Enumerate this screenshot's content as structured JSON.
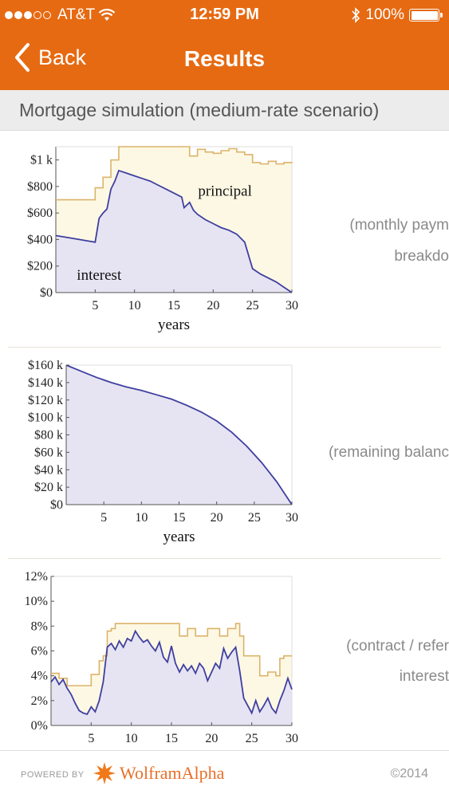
{
  "status": {
    "carrier": "AT&T",
    "time": "12:59 PM",
    "battery": "100%",
    "signal_bars_filled": 3,
    "signal_bars_total": 5
  },
  "nav": {
    "back_label": "Back",
    "title": "Results"
  },
  "pod": {
    "title": "Mortgage simulation (medium-rate scenario)"
  },
  "captions": {
    "c1_line1": "(monthly paym",
    "c1_line2": "breakdo",
    "c2_line1": "(remaining balanc",
    "c3_line1": "(contract / refer",
    "c3_line2": "interest"
  },
  "footer": {
    "powered_by": "POWERED BY",
    "brand": "WolframAlpha",
    "copyright": "©2014"
  },
  "colors": {
    "orange": "#e66a12",
    "fill_blue": "#e6e4f2",
    "line_blue": "#3f3fa0",
    "fill_beige": "#fdf8e4",
    "line_tan": "#dcb36a"
  },
  "chart_data": [
    {
      "type": "area",
      "xlabel": "years",
      "xlim": [
        0,
        30
      ],
      "ylim": [
        0,
        1100
      ],
      "xticks": [
        5,
        10,
        15,
        20,
        25,
        30
      ],
      "yticks": [
        0,
        200,
        400,
        600,
        800,
        1000
      ],
      "ytick_labels": [
        "$0",
        "$200",
        "$400",
        "$600",
        "$800",
        "$1 k"
      ],
      "annotations": [
        {
          "text": "principal",
          "x": 21.5,
          "y": 730
        },
        {
          "text": "interest",
          "x": 5.5,
          "y": 95
        }
      ],
      "series": [
        {
          "name": "principal",
          "x": [
            0,
            2,
            4,
            5,
            6,
            7,
            8,
            9,
            10,
            11,
            12,
            13,
            14,
            15,
            16,
            17,
            18,
            19,
            20,
            21,
            22,
            23,
            24,
            25,
            26,
            27,
            28,
            29,
            30
          ],
          "values": [
            700,
            700,
            700,
            790,
            870,
            1000,
            1100,
            1100,
            1100,
            1100,
            1100,
            1100,
            1100,
            1100,
            1100,
            1030,
            1080,
            1060,
            1050,
            1070,
            1085,
            1060,
            1040,
            980,
            970,
            990,
            970,
            980,
            975
          ]
        },
        {
          "name": "interest",
          "x": [
            0,
            2,
            4,
            5,
            5.5,
            6,
            6.5,
            7,
            7.5,
            8,
            9,
            10,
            11,
            12,
            13,
            14,
            15,
            16,
            16.3,
            17,
            17.5,
            18,
            19,
            20,
            21,
            22,
            23,
            24,
            25,
            26,
            27,
            28,
            29,
            30
          ],
          "values": [
            430,
            410,
            390,
            380,
            560,
            600,
            630,
            780,
            840,
            920,
            900,
            880,
            860,
            840,
            810,
            780,
            750,
            720,
            640,
            680,
            620,
            590,
            550,
            520,
            490,
            470,
            440,
            380,
            180,
            140,
            110,
            80,
            40,
            0
          ]
        }
      ]
    },
    {
      "type": "area",
      "xlabel": "years",
      "xlim": [
        0,
        30
      ],
      "ylim": [
        0,
        160000
      ],
      "xticks": [
        5,
        10,
        15,
        20,
        25,
        30
      ],
      "yticks": [
        0,
        20000,
        40000,
        60000,
        80000,
        100000,
        120000,
        140000,
        160000
      ],
      "ytick_labels": [
        "$0",
        "$20 k",
        "$40 k",
        "$60 k",
        "$80 k",
        "$100 k",
        "$120 k",
        "$140 k",
        "$160 k"
      ],
      "series": [
        {
          "name": "",
          "x": [
            0,
            2,
            4,
            6,
            8,
            10,
            12,
            14,
            16,
            18,
            20,
            22,
            24,
            26,
            28,
            30
          ],
          "values": [
            160000,
            153000,
            146000,
            140000,
            135000,
            131000,
            126000,
            121000,
            114000,
            106000,
            96000,
            83000,
            67000,
            48000,
            26000,
            0
          ]
        }
      ]
    },
    {
      "type": "area",
      "xlim": [
        0,
        30
      ],
      "ylim": [
        0,
        12
      ],
      "xticks": [
        5,
        10,
        15,
        20,
        25,
        30
      ],
      "yticks": [
        0,
        2,
        4,
        6,
        8,
        10,
        12
      ],
      "ytick_labels": [
        "0%",
        "2%",
        "4%",
        "6%",
        "8%",
        "10%",
        "12%"
      ],
      "series": [
        {
          "name": "contract",
          "x": [
            0,
            1,
            2,
            3,
            4,
            5,
            6,
            6.5,
            7,
            7.5,
            8,
            9,
            10,
            11,
            12,
            13,
            14,
            15,
            16,
            16.5,
            17,
            18,
            19,
            19.5,
            20,
            21,
            22,
            23,
            23.5,
            24,
            25,
            26,
            27,
            28,
            28.5,
            29,
            30
          ],
          "values": [
            4.2,
            3.8,
            3.2,
            3.2,
            3.2,
            4.1,
            5.2,
            5.6,
            7.6,
            7.8,
            8.2,
            8.2,
            8.2,
            8.2,
            8.2,
            8.2,
            8.2,
            8.2,
            7.2,
            7.2,
            7.8,
            7.2,
            7.2,
            7.8,
            7.8,
            7.2,
            7.8,
            8.2,
            7.2,
            5.6,
            5.6,
            4.0,
            4.3,
            4.0,
            5.4,
            5.6,
            5.6
          ]
        },
        {
          "name": "reference",
          "x": [
            0,
            0.5,
            1,
            1.5,
            2,
            2.5,
            3,
            3.5,
            4,
            4.5,
            5,
            5.5,
            6,
            6.5,
            7,
            7.5,
            8,
            8.5,
            9,
            9.5,
            10,
            10.5,
            11,
            11.5,
            12,
            12.5,
            13,
            13.5,
            14,
            14.5,
            15,
            15.5,
            16,
            16.5,
            17,
            17.5,
            18,
            18.5,
            19,
            19.5,
            20,
            20.5,
            21,
            21.5,
            22,
            22.5,
            23,
            23.5,
            24,
            24.5,
            25,
            25.5,
            26,
            26.5,
            27,
            27.5,
            28,
            28.5,
            29,
            29.5,
            30
          ],
          "values": [
            3.5,
            3.9,
            3.3,
            3.7,
            3.0,
            2.5,
            1.8,
            1.2,
            1.0,
            0.9,
            1.5,
            1.1,
            2.0,
            3.5,
            6.3,
            6.6,
            6.1,
            6.8,
            6.3,
            7.0,
            6.8,
            7.6,
            7.1,
            6.7,
            6.9,
            6.4,
            6.0,
            6.7,
            5.5,
            5.1,
            6.4,
            5.0,
            4.3,
            4.9,
            4.4,
            4.8,
            4.2,
            5.0,
            4.6,
            3.6,
            4.3,
            5.0,
            4.6,
            6.2,
            5.4,
            5.9,
            6.3,
            4.4,
            2.2,
            1.6,
            1.0,
            2.0,
            1.1,
            1.6,
            2.2,
            1.4,
            1.0,
            2.0,
            2.8,
            3.8,
            2.9
          ]
        }
      ]
    }
  ]
}
